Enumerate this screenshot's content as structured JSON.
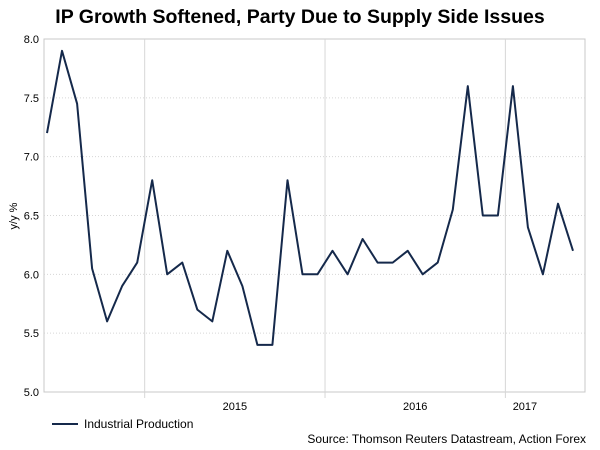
{
  "chart_data": {
    "type": "line",
    "title": "IP Growth Softened, Party Due to Supply Side Issues",
    "ylabel": "y/y %",
    "xlabel": "",
    "ylim": [
      5.0,
      8.0
    ],
    "yticks": [
      "5.0",
      "5.5",
      "6.0",
      "6.5",
      "7.0",
      "7.5",
      "8.0"
    ],
    "year_ticks": [
      {
        "label": "2015",
        "index": 7
      },
      {
        "label": "2016",
        "index": 19
      },
      {
        "label": "2017",
        "index": 31
      }
    ],
    "categories": [
      "2014-06",
      "2014-07",
      "2014-08",
      "2014-09",
      "2014-10",
      "2014-11",
      "2014-12",
      "2015-01",
      "2015-02",
      "2015-03",
      "2015-04",
      "2015-05",
      "2015-06",
      "2015-07",
      "2015-08",
      "2015-09",
      "2015-10",
      "2015-11",
      "2015-12",
      "2016-01",
      "2016-02",
      "2016-03",
      "2016-04",
      "2016-05",
      "2016-06",
      "2016-07",
      "2016-08",
      "2016-09",
      "2016-10",
      "2016-11",
      "2016-12",
      "2017-01",
      "2017-02",
      "2017-03",
      "2017-04",
      "2017-05"
    ],
    "series": [
      {
        "name": "Industrial Production",
        "color": "#15294b",
        "values": [
          7.2,
          7.9,
          7.45,
          6.05,
          5.6,
          5.9,
          6.1,
          6.8,
          6.0,
          6.1,
          5.7,
          5.6,
          6.2,
          5.9,
          5.4,
          5.4,
          6.8,
          6.0,
          6.0,
          6.2,
          6.0,
          6.3,
          6.1,
          6.1,
          6.2,
          6.0,
          6.1,
          6.55,
          7.6,
          6.5,
          6.5,
          7.6,
          6.4,
          6.0,
          6.6,
          6.2
        ]
      }
    ],
    "legend": {
      "position": "bottom-left",
      "label": "Industrial Production"
    },
    "source": "Source: Thomson Reuters Datastream, Action Forex",
    "grid": true
  }
}
